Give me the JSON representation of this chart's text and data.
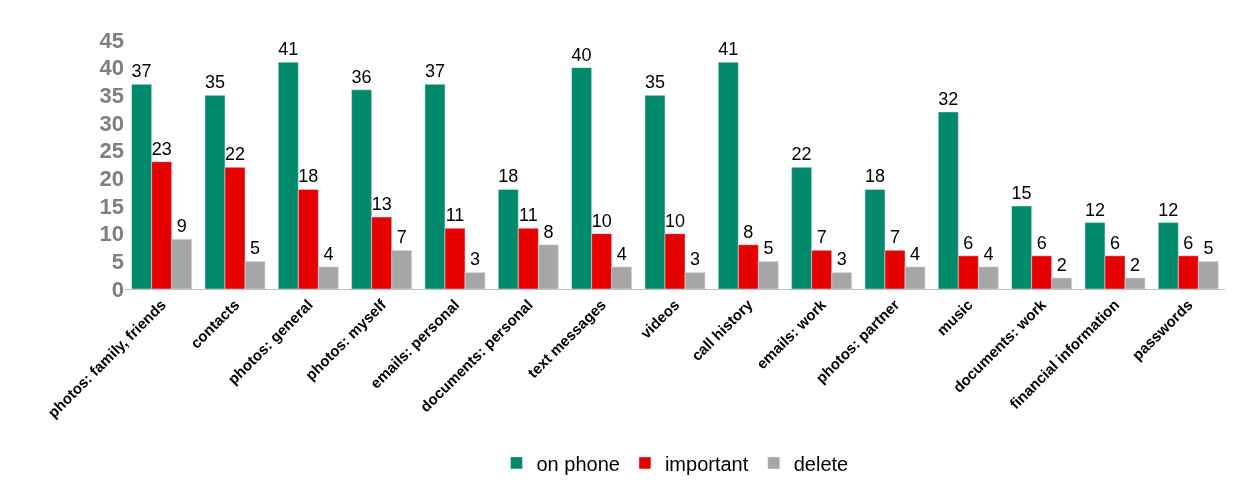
{
  "chart_data": {
    "type": "bar",
    "categories": [
      "photos: family, friends",
      "contacts",
      "photos: general",
      "photos: myself",
      "emails: personal",
      "documents: personal",
      "text messages",
      "videos",
      "call history",
      "emails: work",
      "photos: partner",
      "music",
      "documents: work",
      "financial information",
      "passwords"
    ],
    "series": [
      {
        "name": "on phone",
        "color": "#00896b",
        "values": [
          37,
          35,
          41,
          36,
          37,
          18,
          40,
          35,
          41,
          22,
          18,
          32,
          15,
          12,
          12
        ]
      },
      {
        "name": "important",
        "color": "#e60000",
        "values": [
          23,
          22,
          18,
          13,
          11,
          11,
          10,
          10,
          8,
          7,
          7,
          6,
          6,
          6,
          6
        ]
      },
      {
        "name": "delete",
        "color": "#a6a6a6",
        "values": [
          9,
          5,
          4,
          7,
          3,
          8,
          4,
          3,
          5,
          3,
          4,
          4,
          2,
          2,
          5
        ]
      }
    ],
    "ylim": [
      0,
      45
    ],
    "yticks": [
      0,
      5,
      10,
      15,
      20,
      25,
      30,
      35,
      40,
      45
    ],
    "data_labels": true,
    "legend": "bottom"
  }
}
